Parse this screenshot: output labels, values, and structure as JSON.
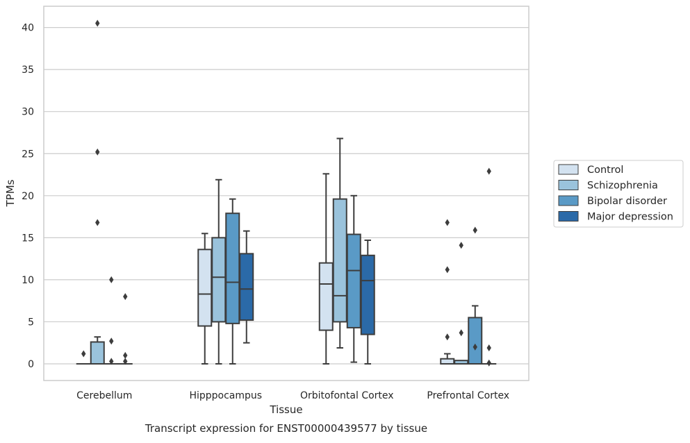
{
  "chart_data": {
    "type": "box",
    "caption": "Transcript expression for ENST00000439577 by tissue",
    "xlabel": "Tissue",
    "ylabel": "TPMs",
    "ylim": [
      -2,
      42.5
    ],
    "yticks": [
      0,
      5,
      10,
      15,
      20,
      25,
      30,
      35,
      40
    ],
    "grid": true,
    "legend_position": "right",
    "categories": [
      "Cerebellum",
      "Hipppocampus",
      "Orbitofontal Cortex",
      "Prefrontal Cortex"
    ],
    "series": [
      {
        "name": "Control",
        "color": "#d3e2f0",
        "boxes": [
          {
            "whislo": 0,
            "q1": 0,
            "med": 0,
            "q3": 0,
            "whishi": 0,
            "fliers": [
              1.2
            ]
          },
          {
            "whislo": 0,
            "q1": 4.5,
            "med": 8.3,
            "q3": 13.6,
            "whishi": 15.5,
            "fliers": []
          },
          {
            "whislo": 0,
            "q1": 4.0,
            "med": 9.5,
            "q3": 12.0,
            "whishi": 22.6,
            "fliers": []
          },
          {
            "whislo": 0,
            "q1": 0,
            "med": 0,
            "q3": 0.6,
            "whishi": 1.2,
            "fliers": [
              3.2,
              11.2,
              16.8
            ]
          }
        ]
      },
      {
        "name": "Schizophrenia",
        "color": "#9ac3dc",
        "boxes": [
          {
            "whislo": 0,
            "q1": 0,
            "med": 0,
            "q3": 2.6,
            "whishi": 3.2,
            "fliers": [
              16.8,
              25.2,
              40.5
            ]
          },
          {
            "whislo": 0,
            "q1": 5.0,
            "med": 10.3,
            "q3": 15.0,
            "whishi": 21.9,
            "fliers": []
          },
          {
            "whislo": 1.9,
            "q1": 5.0,
            "med": 8.1,
            "q3": 19.6,
            "whishi": 26.8,
            "fliers": []
          },
          {
            "whislo": 0,
            "q1": 0,
            "med": 0,
            "q3": 0.4,
            "whishi": 0.4,
            "fliers": [
              3.7,
              14.1
            ]
          }
        ]
      },
      {
        "name": "Bipolar disorder",
        "color": "#5a9ac6",
        "boxes": [
          {
            "whislo": 0,
            "q1": 0,
            "med": 0,
            "q3": 0,
            "whishi": 0,
            "fliers": [
              0.3,
              2.7,
              10.0
            ]
          },
          {
            "whislo": 0,
            "q1": 4.8,
            "med": 9.7,
            "q3": 17.9,
            "whishi": 19.6,
            "fliers": []
          },
          {
            "whislo": 0.2,
            "q1": 4.3,
            "med": 11.1,
            "q3": 15.4,
            "whishi": 20.0,
            "fliers": []
          },
          {
            "whislo": 0,
            "q1": 0,
            "med": 0,
            "q3": 5.5,
            "whishi": 6.9,
            "fliers": [
              2.0,
              15.9
            ]
          }
        ]
      },
      {
        "name": "Major depression",
        "color": "#2b6aa8",
        "boxes": [
          {
            "whislo": 0,
            "q1": 0,
            "med": 0,
            "q3": 0,
            "whishi": 0,
            "fliers": [
              0.3,
              1.0,
              8.0
            ]
          },
          {
            "whislo": 2.5,
            "q1": 5.2,
            "med": 8.9,
            "q3": 13.1,
            "whishi": 15.8,
            "fliers": []
          },
          {
            "whislo": 0,
            "q1": 3.5,
            "med": 9.9,
            "q3": 12.9,
            "whishi": 14.7,
            "fliers": []
          },
          {
            "whislo": 0,
            "q1": 0,
            "med": 0,
            "q3": 0,
            "whishi": 0,
            "fliers": [
              0.1,
              1.9,
              22.9
            ]
          }
        ]
      }
    ]
  }
}
